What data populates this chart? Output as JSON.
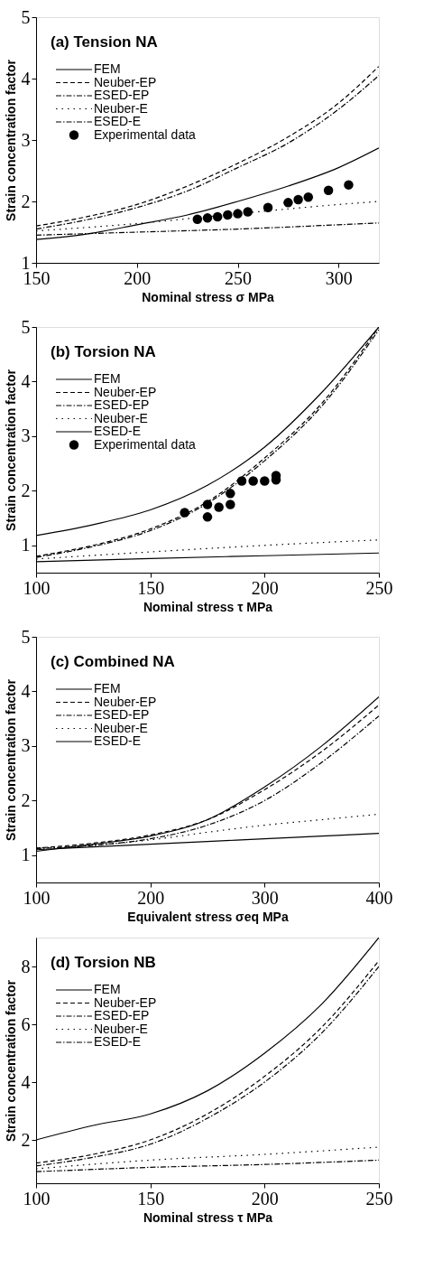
{
  "chart_data": [
    {
      "type": "line",
      "title": "(a) Tension NA",
      "xlabel": "Nominal stress  σ  MPa",
      "ylabel": "Strain concentration factor",
      "xlim": [
        150,
        320
      ],
      "xticks": [
        150,
        200,
        250,
        300
      ],
      "ylim": [
        1,
        5
      ],
      "yticks": [
        1,
        2,
        3,
        4,
        5
      ],
      "grid": false,
      "legend": "top left",
      "series": [
        {
          "name": "FEM",
          "color": "#000000",
          "line_style": "solid",
          "x": [
            150,
            175,
            200,
            225,
            250,
            275,
            300,
            320
          ],
          "values": [
            1.38,
            1.47,
            1.62,
            1.78,
            2.0,
            2.25,
            2.55,
            2.87
          ]
        },
        {
          "name": "Neuber-EP",
          "color": "#000000",
          "line_style": "dashed",
          "x": [
            150,
            175,
            200,
            225,
            250,
            275,
            300,
            320
          ],
          "values": [
            1.6,
            1.75,
            1.95,
            2.25,
            2.62,
            3.05,
            3.6,
            4.2
          ]
        },
        {
          "name": "ESED-EP",
          "color": "#000000",
          "line_style": "dashdot",
          "x": [
            150,
            175,
            200,
            225,
            250,
            275,
            300,
            320
          ],
          "values": [
            1.55,
            1.7,
            1.9,
            2.17,
            2.55,
            2.95,
            3.5,
            4.05
          ]
        },
        {
          "name": "Neuber-E",
          "color": "#000000",
          "line_style": "dotted",
          "x": [
            150,
            200,
            250,
            300,
            320
          ],
          "values": [
            1.52,
            1.64,
            1.8,
            1.95,
            2.0
          ]
        },
        {
          "name": "ESED-E",
          "color": "#000000",
          "line_style": "dashdot",
          "x": [
            150,
            200,
            250,
            300,
            320
          ],
          "values": [
            1.45,
            1.5,
            1.55,
            1.62,
            1.65
          ]
        },
        {
          "name": "Experimental data",
          "type": "scatter",
          "marker": "circle",
          "color": "#000000",
          "x": [
            230,
            235,
            240,
            245,
            250,
            255,
            265,
            275,
            280,
            285,
            295,
            305
          ],
          "values": [
            1.71,
            1.73,
            1.75,
            1.78,
            1.8,
            1.83,
            1.9,
            1.98,
            2.03,
            2.07,
            2.18,
            2.27
          ]
        }
      ]
    },
    {
      "type": "line",
      "title": "(b) Torsion NA",
      "xlabel": "Nominal stress  τ  MPa",
      "ylabel": "Strain concentration factor",
      "xlim": [
        100,
        250
      ],
      "xticks": [
        100,
        150,
        200,
        250
      ],
      "ylim": [
        0.5,
        5
      ],
      "yticks": [
        1,
        2,
        3,
        4,
        5
      ],
      "grid": false,
      "legend": "top left",
      "series": [
        {
          "name": "FEM",
          "color": "#000000",
          "line_style": "solid",
          "x": [
            100,
            125,
            150,
            175,
            200,
            225,
            250
          ],
          "values": [
            1.18,
            1.38,
            1.65,
            2.1,
            2.8,
            3.8,
            5.0
          ]
        },
        {
          "name": "Neuber-EP",
          "color": "#000000",
          "line_style": "dashed",
          "x": [
            100,
            125,
            150,
            175,
            200,
            225,
            250
          ],
          "values": [
            0.8,
            1.0,
            1.3,
            1.8,
            2.6,
            3.6,
            5.0
          ]
        },
        {
          "name": "ESED-EP",
          "color": "#000000",
          "line_style": "dashdot",
          "x": [
            100,
            125,
            150,
            175,
            200,
            225,
            250
          ],
          "values": [
            0.78,
            0.98,
            1.27,
            1.77,
            2.55,
            3.55,
            4.95
          ]
        },
        {
          "name": "Neuber-E",
          "color": "#000000",
          "line_style": "dotted",
          "x": [
            100,
            150,
            200,
            250
          ],
          "values": [
            0.75,
            0.88,
            1.0,
            1.1
          ]
        },
        {
          "name": "ESED-E",
          "color": "#000000",
          "line_style": "solid",
          "x": [
            100,
            150,
            200,
            250
          ],
          "values": [
            0.7,
            0.76,
            0.81,
            0.86
          ]
        },
        {
          "name": "Experimental data",
          "type": "scatter",
          "marker": "circle",
          "color": "#000000",
          "x": [
            165,
            175,
            175,
            180,
            185,
            185,
            190,
            195,
            200,
            205,
            205
          ],
          "values": [
            1.6,
            1.75,
            1.52,
            1.7,
            1.95,
            1.75,
            2.18,
            2.18,
            2.18,
            2.28,
            2.2
          ]
        }
      ]
    },
    {
      "type": "line",
      "title": "(c) Combined NA",
      "xlabel": "Equivalent stress  σeq MPa",
      "ylabel": "Strain concentration factor",
      "xlim": [
        100,
        400
      ],
      "xticks": [
        100,
        200,
        300,
        400
      ],
      "ylim": [
        0.5,
        5
      ],
      "yticks": [
        1,
        2,
        3,
        4,
        5
      ],
      "grid": false,
      "legend": "top left",
      "series": [
        {
          "name": "FEM",
          "color": "#000000",
          "line_style": "solid",
          "x": [
            100,
            150,
            200,
            250,
            300,
            350,
            400
          ],
          "values": [
            1.07,
            1.2,
            1.35,
            1.65,
            2.25,
            3.0,
            3.9
          ]
        },
        {
          "name": "Neuber-EP",
          "color": "#000000",
          "line_style": "dashed",
          "x": [
            100,
            150,
            200,
            250,
            300,
            350,
            400
          ],
          "values": [
            1.13,
            1.22,
            1.37,
            1.65,
            2.2,
            2.9,
            3.75
          ]
        },
        {
          "name": "ESED-EP",
          "color": "#000000",
          "line_style": "dashdot",
          "x": [
            100,
            150,
            200,
            250,
            300,
            350,
            400
          ],
          "values": [
            1.12,
            1.18,
            1.3,
            1.55,
            2.0,
            2.7,
            3.55
          ]
        },
        {
          "name": "Neuber-E",
          "color": "#000000",
          "line_style": "dotted",
          "x": [
            100,
            150,
            200,
            250,
            300,
            350,
            400
          ],
          "values": [
            1.13,
            1.18,
            1.28,
            1.42,
            1.55,
            1.65,
            1.75
          ]
        },
        {
          "name": "ESED-E",
          "color": "#000000",
          "line_style": "solid",
          "x": [
            100,
            150,
            200,
            250,
            300,
            350,
            400
          ],
          "values": [
            1.1,
            1.15,
            1.2,
            1.25,
            1.3,
            1.35,
            1.4
          ]
        }
      ]
    },
    {
      "type": "line",
      "title": "(d) Torsion NB",
      "xlabel": "Nominal stress  τ  MPa",
      "ylabel": "Strain concentration factor",
      "xlim": [
        100,
        250
      ],
      "xticks": [
        100,
        150,
        200,
        250
      ],
      "ylim": [
        0.5,
        9
      ],
      "yticks": [
        2,
        4,
        6,
        8
      ],
      "grid": false,
      "legend": "top left",
      "series": [
        {
          "name": "FEM",
          "color": "#000000",
          "line_style": "solid",
          "x": [
            100,
            125,
            150,
            175,
            200,
            225,
            250
          ],
          "values": [
            2.0,
            2.5,
            2.9,
            3.7,
            5.0,
            6.7,
            9.0
          ]
        },
        {
          "name": "Neuber-EP",
          "color": "#000000",
          "line_style": "dashed",
          "x": [
            100,
            125,
            150,
            175,
            200,
            225,
            250
          ],
          "values": [
            1.2,
            1.5,
            2.0,
            2.9,
            4.2,
            5.9,
            8.2
          ]
        },
        {
          "name": "ESED-EP",
          "color": "#000000",
          "line_style": "dashdot",
          "x": [
            100,
            125,
            150,
            175,
            200,
            225,
            250
          ],
          "values": [
            1.1,
            1.4,
            1.85,
            2.75,
            4.0,
            5.7,
            8.0
          ]
        },
        {
          "name": "Neuber-E",
          "color": "#000000",
          "line_style": "dotted",
          "x": [
            100,
            150,
            200,
            250
          ],
          "values": [
            1.0,
            1.3,
            1.5,
            1.75
          ]
        },
        {
          "name": "ESED-E",
          "color": "#000000",
          "line_style": "dashdot",
          "x": [
            100,
            150,
            200,
            250
          ],
          "values": [
            0.9,
            1.05,
            1.15,
            1.3
          ]
        }
      ]
    }
  ]
}
